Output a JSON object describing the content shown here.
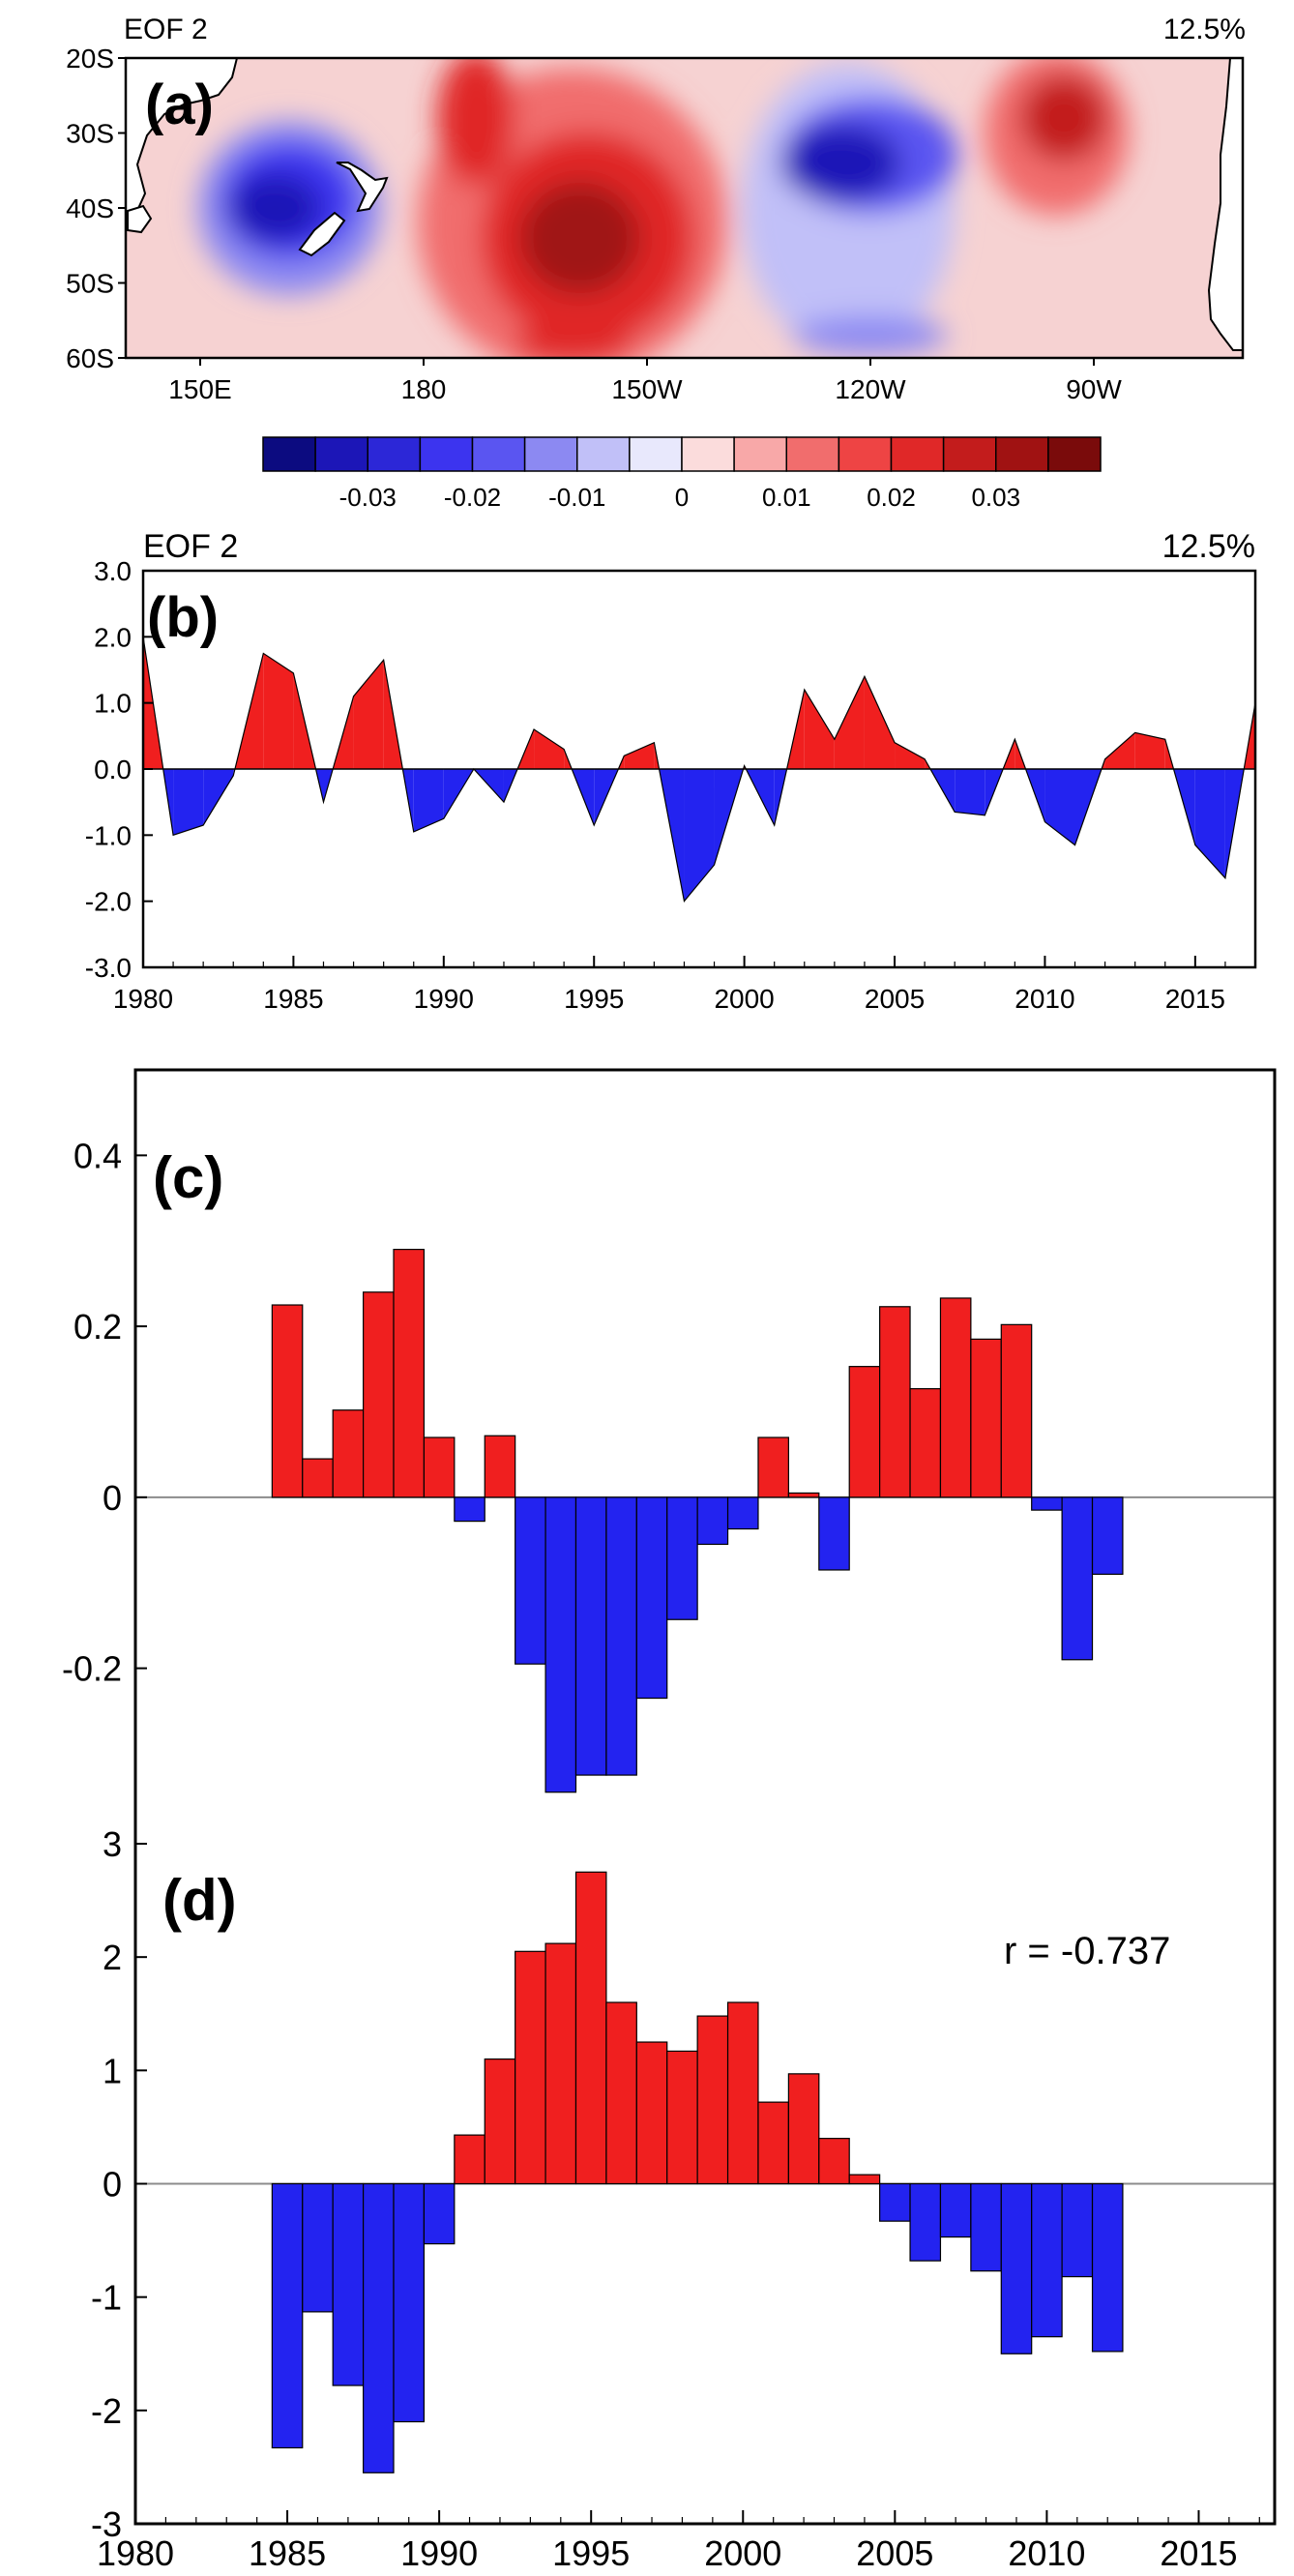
{
  "colors": {
    "red": "#f01f1f",
    "blue": "#2323f0",
    "zero_line": "#8c8c8c",
    "axis": "#000000",
    "land": "#ffffff"
  },
  "chart_data": [
    {
      "id": "a",
      "type": "heatmap",
      "panel_label": "(a)",
      "title": "EOF 2",
      "variance": "12.5%",
      "x_ticks": [
        "150E",
        "180",
        "150W",
        "120W",
        "90W"
      ],
      "y_ticks": [
        "20S",
        "30S",
        "40S",
        "50S",
        "60S"
      ],
      "lon_range": [
        140,
        290
      ],
      "lat_range": [
        -60,
        -20
      ],
      "colorbar": {
        "labels": [
          "-0.03",
          "-0.02",
          "-0.01",
          "0",
          "0.01",
          "0.02",
          "0.03"
        ],
        "levels": [
          -0.035,
          -0.03,
          -0.025,
          -0.02,
          -0.015,
          -0.01,
          -0.005,
          0,
          0.005,
          0.01,
          0.015,
          0.02,
          0.025,
          0.03,
          0.035
        ],
        "colors": [
          "#0c0b80",
          "#1c16b7",
          "#2c27d7",
          "#3c34ef",
          "#5a55f1",
          "#8c89f2",
          "#c1c0f8",
          "#e8e8fc",
          "#fbdcdc",
          "#f8a8a8",
          "#f16d6d",
          "#ee4444",
          "#e02828",
          "#c31c1c",
          "#a01212",
          "#7a0b0b"
        ]
      },
      "features": [
        {
          "name": "negative-center-tasman-sea",
          "lon": 162,
          "lat": -39,
          "value": -0.032
        },
        {
          "name": "positive-center-south-pacific",
          "lon": 202,
          "lat": -44,
          "value": 0.033
        },
        {
          "name": "negative-center-east-pacific",
          "lon": 237,
          "lat": -34,
          "value": -0.031
        },
        {
          "name": "positive-center-southeast-pacific",
          "lon": 265,
          "lat": -30,
          "value": 0.025
        }
      ]
    },
    {
      "id": "b",
      "type": "area",
      "panel_label": "(b)",
      "title": "EOF 2",
      "variance": "12.5%",
      "x": [
        1980,
        1981,
        1982,
        1983,
        1984,
        1985,
        1986,
        1987,
        1988,
        1989,
        1990,
        1991,
        1992,
        1993,
        1994,
        1995,
        1996,
        1997,
        1998,
        1999,
        2000,
        2001,
        2002,
        2003,
        2004,
        2005,
        2006,
        2007,
        2008,
        2009,
        2010,
        2011,
        2012,
        2013,
        2014,
        2015,
        2016,
        2017
      ],
      "values": [
        2.0,
        -1.0,
        -0.85,
        -0.1,
        1.75,
        1.45,
        -0.5,
        1.1,
        1.65,
        -0.95,
        -0.75,
        0.0,
        -0.5,
        0.6,
        0.3,
        -0.85,
        0.2,
        0.4,
        -2.0,
        -1.45,
        0.05,
        -0.85,
        1.2,
        0.45,
        1.4,
        0.4,
        0.15,
        -0.65,
        -0.7,
        0.45,
        -0.8,
        -1.15,
        0.15,
        0.55,
        0.45,
        -1.15,
        -1.65,
        1.0
      ],
      "xlim": [
        1980,
        2017
      ],
      "ylim": [
        -3.0,
        3.0
      ],
      "x_ticks": [
        "1980",
        "1985",
        "1990",
        "1995",
        "2000",
        "2005",
        "2010",
        "2015"
      ],
      "y_ticks": [
        "3.0",
        "2.0",
        "1.0",
        "0.0",
        "-1.0",
        "-2.0",
        "-3.0"
      ]
    },
    {
      "id": "c",
      "type": "bar",
      "panel_label": "(c)",
      "x": [
        1985,
        1986,
        1987,
        1988,
        1989,
        1990,
        1991,
        1992,
        1993,
        1994,
        1995,
        1996,
        1997,
        1998,
        1999,
        2000,
        2001,
        2002,
        2003,
        2004,
        2005,
        2006,
        2007,
        2008,
        2009,
        2010,
        2011,
        2012
      ],
      "values": [
        0.225,
        0.045,
        0.102,
        0.24,
        0.29,
        0.07,
        -0.028,
        0.072,
        -0.195,
        -0.345,
        -0.325,
        -0.325,
        -0.235,
        -0.143,
        -0.055,
        -0.037,
        0.07,
        0.005,
        -0.085,
        0.153,
        0.223,
        0.127,
        0.233,
        0.185,
        0.202,
        -0.015,
        -0.19,
        -0.09
      ],
      "xlim": [
        1980,
        2017.5
      ],
      "ylim": [
        -0.36,
        0.5
      ],
      "y_ticks": [
        "0.4",
        "0.2",
        "0",
        "-0.2"
      ]
    },
    {
      "id": "d",
      "type": "bar",
      "panel_label": "(d)",
      "annotation": "r = -0.737",
      "x": [
        1985,
        1986,
        1987,
        1988,
        1989,
        1990,
        1991,
        1992,
        1993,
        1994,
        1995,
        1996,
        1997,
        1998,
        1999,
        2000,
        2001,
        2002,
        2003,
        2004,
        2005,
        2006,
        2007,
        2008,
        2009,
        2010,
        2011,
        2012
      ],
      "values": [
        -2.33,
        -1.13,
        -1.78,
        -2.55,
        -2.1,
        -0.53,
        0.43,
        1.1,
        2.05,
        2.12,
        2.75,
        1.6,
        1.25,
        1.17,
        1.48,
        1.6,
        0.72,
        0.97,
        0.4,
        0.08,
        -0.33,
        -0.68,
        -0.47,
        -0.77,
        -1.5,
        -1.35,
        -0.82,
        -1.48
      ],
      "xlim": [
        1980,
        2017.5
      ],
      "ylim": [
        -3,
        3
      ],
      "y_ticks": [
        "3",
        "2",
        "1",
        "0",
        "-1",
        "-2",
        "-3"
      ],
      "x_ticks": [
        "1980",
        "1985",
        "1990",
        "1995",
        "2000",
        "2005",
        "2010",
        "2015"
      ]
    }
  ]
}
